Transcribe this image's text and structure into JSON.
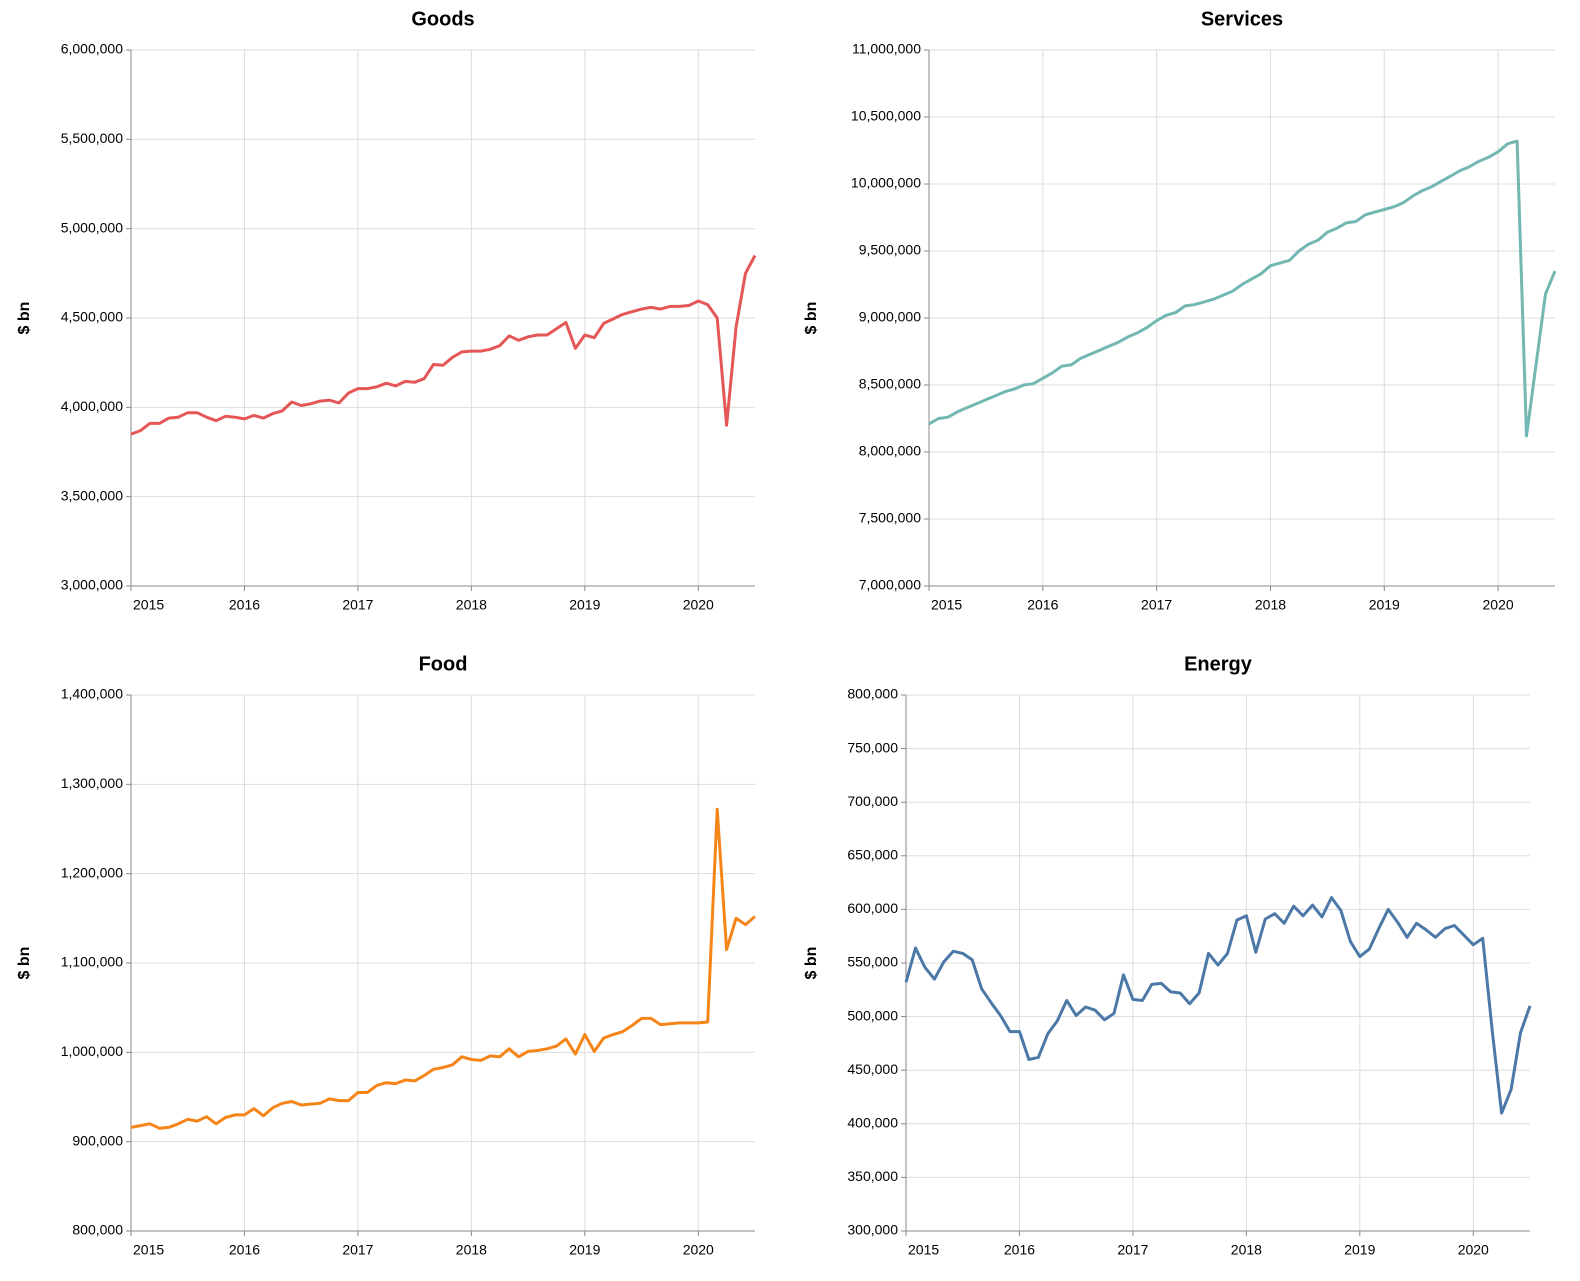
{
  "chart_data": [
    {
      "type": "line",
      "title": "Goods",
      "y_label": "$ bn",
      "color": "#e45756",
      "x": [
        "2015-01",
        "2015-02",
        "2015-03",
        "2015-04",
        "2015-05",
        "2015-06",
        "2015-07",
        "2015-08",
        "2015-09",
        "2015-10",
        "2015-11",
        "2015-12",
        "2016-01",
        "2016-02",
        "2016-03",
        "2016-04",
        "2016-05",
        "2016-06",
        "2016-07",
        "2016-08",
        "2016-09",
        "2016-10",
        "2016-11",
        "2016-12",
        "2017-01",
        "2017-02",
        "2017-03",
        "2017-04",
        "2017-05",
        "2017-06",
        "2017-07",
        "2017-08",
        "2017-09",
        "2017-10",
        "2017-11",
        "2017-12",
        "2018-01",
        "2018-02",
        "2018-03",
        "2018-04",
        "2018-05",
        "2018-06",
        "2018-07",
        "2018-08",
        "2018-09",
        "2018-10",
        "2018-11",
        "2018-12",
        "2019-01",
        "2019-02",
        "2019-03",
        "2019-04",
        "2019-05",
        "2019-06",
        "2019-07",
        "2019-08",
        "2019-09",
        "2019-10",
        "2019-11",
        "2019-12",
        "2020-01",
        "2020-02",
        "2020-03",
        "2020-04",
        "2020-05",
        "2020-06",
        "2020-07"
      ],
      "values": [
        3850000,
        3870000,
        3910000,
        3910000,
        3940000,
        3945000,
        3970000,
        3970000,
        3945000,
        3925000,
        3950000,
        3945000,
        3935000,
        3955000,
        3940000,
        3965000,
        3980000,
        4030000,
        4010000,
        4020000,
        4035000,
        4040000,
        4025000,
        4080000,
        4105000,
        4105000,
        4115000,
        4135000,
        4120000,
        4145000,
        4140000,
        4160000,
        4240000,
        4235000,
        4280000,
        4310000,
        4315000,
        4315000,
        4325000,
        4345000,
        4400000,
        4375000,
        4395000,
        4405000,
        4405000,
        4440000,
        4475000,
        4330000,
        4405000,
        4390000,
        4470000,
        4495000,
        4520000,
        4535000,
        4550000,
        4560000,
        4550000,
        4565000,
        4565000,
        4570000,
        4595000,
        4575000,
        4500000,
        3900000,
        4450000,
        4750000,
        4850000
      ],
      "xlim": [
        "2015-01",
        "2020-07"
      ],
      "xticks": [
        {
          "value": "2015-01",
          "label": "2015"
        },
        {
          "value": "2016-01",
          "label": "2016"
        },
        {
          "value": "2017-01",
          "label": "2017"
        },
        {
          "value": "2018-01",
          "label": "2018"
        },
        {
          "value": "2019-01",
          "label": "2019"
        },
        {
          "value": "2020-01",
          "label": "2020"
        }
      ],
      "ylim": [
        3000000,
        6000000
      ],
      "yticks": [
        {
          "value": 3000000,
          "label": "3,000,000"
        },
        {
          "value": 3500000,
          "label": "3,500,000"
        },
        {
          "value": 4000000,
          "label": "4,000,000"
        },
        {
          "value": 4500000,
          "label": "4,500,000"
        },
        {
          "value": 5000000,
          "label": "5,000,000"
        },
        {
          "value": 5500000,
          "label": "5,500,000"
        },
        {
          "value": 6000000,
          "label": "6,000,000"
        }
      ],
      "grid": true
    },
    {
      "type": "line",
      "title": "Services",
      "y_label": "$ bn",
      "color": "#72b7b2",
      "x": [
        "2015-01",
        "2015-02",
        "2015-03",
        "2015-04",
        "2015-05",
        "2015-06",
        "2015-07",
        "2015-08",
        "2015-09",
        "2015-10",
        "2015-11",
        "2015-12",
        "2016-01",
        "2016-02",
        "2016-03",
        "2016-04",
        "2016-05",
        "2016-06",
        "2016-07",
        "2016-08",
        "2016-09",
        "2016-10",
        "2016-11",
        "2016-12",
        "2017-01",
        "2017-02",
        "2017-03",
        "2017-04",
        "2017-05",
        "2017-06",
        "2017-07",
        "2017-08",
        "2017-09",
        "2017-10",
        "2017-11",
        "2017-12",
        "2018-01",
        "2018-02",
        "2018-03",
        "2018-04",
        "2018-05",
        "2018-06",
        "2018-07",
        "2018-08",
        "2018-09",
        "2018-10",
        "2018-11",
        "2018-12",
        "2019-01",
        "2019-02",
        "2019-03",
        "2019-04",
        "2019-05",
        "2019-06",
        "2019-07",
        "2019-08",
        "2019-09",
        "2019-10",
        "2019-11",
        "2019-12",
        "2020-01",
        "2020-02",
        "2020-03",
        "2020-04",
        "2020-05",
        "2020-06",
        "2020-07"
      ],
      "values": [
        8210000,
        8250000,
        8260000,
        8300000,
        8330000,
        8360000,
        8390000,
        8420000,
        8450000,
        8470000,
        8500000,
        8510000,
        8550000,
        8590000,
        8640000,
        8650000,
        8700000,
        8730000,
        8760000,
        8790000,
        8820000,
        8860000,
        8890000,
        8930000,
        8980000,
        9020000,
        9040000,
        9090000,
        9100000,
        9120000,
        9140000,
        9170000,
        9200000,
        9250000,
        9290000,
        9330000,
        9390000,
        9410000,
        9430000,
        9500000,
        9550000,
        9580000,
        9640000,
        9670000,
        9710000,
        9720000,
        9770000,
        9790000,
        9810000,
        9830000,
        9860000,
        9910000,
        9950000,
        9980000,
        10020000,
        10060000,
        10100000,
        10130000,
        10170000,
        10200000,
        10240000,
        10300000,
        10320000,
        8120000,
        8650000,
        9180000,
        9350000
      ],
      "xlim": [
        "2015-01",
        "2020-07"
      ],
      "xticks": [
        {
          "value": "2015-01",
          "label": "2015"
        },
        {
          "value": "2016-01",
          "label": "2016"
        },
        {
          "value": "2017-01",
          "label": "2017"
        },
        {
          "value": "2018-01",
          "label": "2018"
        },
        {
          "value": "2019-01",
          "label": "2019"
        },
        {
          "value": "2020-01",
          "label": "2020"
        }
      ],
      "ylim": [
        7000000,
        11000000
      ],
      "yticks": [
        {
          "value": 7000000,
          "label": "7,000,000"
        },
        {
          "value": 7500000,
          "label": "7,500,000"
        },
        {
          "value": 8000000,
          "label": "8,000,000"
        },
        {
          "value": 8500000,
          "label": "8,500,000"
        },
        {
          "value": 9000000,
          "label": "9,000,000"
        },
        {
          "value": 9500000,
          "label": "9,500,000"
        },
        {
          "value": 10000000,
          "label": "10,000,000"
        },
        {
          "value": 10500000,
          "label": "10,500,000"
        },
        {
          "value": 11000000,
          "label": "11,000,000"
        }
      ],
      "grid": true
    },
    {
      "type": "line",
      "title": "Food",
      "y_label": "$ bn",
      "color": "#f58518",
      "x": [
        "2015-01",
        "2015-02",
        "2015-03",
        "2015-04",
        "2015-05",
        "2015-06",
        "2015-07",
        "2015-08",
        "2015-09",
        "2015-10",
        "2015-11",
        "2015-12",
        "2016-01",
        "2016-02",
        "2016-03",
        "2016-04",
        "2016-05",
        "2016-06",
        "2016-07",
        "2016-08",
        "2016-09",
        "2016-10",
        "2016-11",
        "2016-12",
        "2017-01",
        "2017-02",
        "2017-03",
        "2017-04",
        "2017-05",
        "2017-06",
        "2017-07",
        "2017-08",
        "2017-09",
        "2017-10",
        "2017-11",
        "2017-12",
        "2018-01",
        "2018-02",
        "2018-03",
        "2018-04",
        "2018-05",
        "2018-06",
        "2018-07",
        "2018-08",
        "2018-09",
        "2018-10",
        "2018-11",
        "2018-12",
        "2019-01",
        "2019-02",
        "2019-03",
        "2019-04",
        "2019-05",
        "2019-06",
        "2019-07",
        "2019-08",
        "2019-09",
        "2019-10",
        "2019-11",
        "2019-12",
        "2020-01",
        "2020-02",
        "2020-03",
        "2020-04",
        "2020-05",
        "2020-06",
        "2020-07"
      ],
      "values": [
        916000,
        918000,
        920000,
        915000,
        916000,
        920000,
        925000,
        923000,
        928000,
        920000,
        927000,
        930000,
        930000,
        937000,
        929000,
        938000,
        943000,
        945000,
        941000,
        942000,
        943000,
        948000,
        946000,
        946000,
        955000,
        955000,
        963000,
        966000,
        965000,
        969000,
        968000,
        974000,
        981000,
        983000,
        986000,
        995000,
        992000,
        991000,
        996000,
        995000,
        1004000,
        995000,
        1001000,
        1002000,
        1004000,
        1007000,
        1015000,
        998000,
        1020000,
        1001000,
        1016000,
        1020000,
        1023000,
        1030000,
        1038000,
        1038000,
        1031000,
        1032000,
        1033000,
        1033000,
        1033000,
        1034000,
        1272000,
        1115000,
        1150000,
        1143000,
        1152000
      ],
      "xlim": [
        "2015-01",
        "2020-07"
      ],
      "xticks": [
        {
          "value": "2015-01",
          "label": "2015"
        },
        {
          "value": "2016-01",
          "label": "2016"
        },
        {
          "value": "2017-01",
          "label": "2017"
        },
        {
          "value": "2018-01",
          "label": "2018"
        },
        {
          "value": "2019-01",
          "label": "2019"
        },
        {
          "value": "2020-01",
          "label": "2020"
        }
      ],
      "ylim": [
        800000,
        1400000
      ],
      "yticks": [
        {
          "value": 800000,
          "label": "800,000"
        },
        {
          "value": 900000,
          "label": "900,000"
        },
        {
          "value": 1000000,
          "label": "1,000,000"
        },
        {
          "value": 1100000,
          "label": "1,100,000"
        },
        {
          "value": 1200000,
          "label": "1,200,000"
        },
        {
          "value": 1300000,
          "label": "1,300,000"
        },
        {
          "value": 1400000,
          "label": "1,400,000"
        }
      ],
      "grid": true
    },
    {
      "type": "line",
      "title": "Energy",
      "y_label": "$ bn",
      "color": "#4c78a8",
      "x": [
        "2015-01",
        "2015-02",
        "2015-03",
        "2015-04",
        "2015-05",
        "2015-06",
        "2015-07",
        "2015-08",
        "2015-09",
        "2015-10",
        "2015-11",
        "2015-12",
        "2016-01",
        "2016-02",
        "2016-03",
        "2016-04",
        "2016-05",
        "2016-06",
        "2016-07",
        "2016-08",
        "2016-09",
        "2016-10",
        "2016-11",
        "2016-12",
        "2017-01",
        "2017-02",
        "2017-03",
        "2017-04",
        "2017-05",
        "2017-06",
        "2017-07",
        "2017-08",
        "2017-09",
        "2017-10",
        "2017-11",
        "2017-12",
        "2018-01",
        "2018-02",
        "2018-03",
        "2018-04",
        "2018-05",
        "2018-06",
        "2018-07",
        "2018-08",
        "2018-09",
        "2018-10",
        "2018-11",
        "2018-12",
        "2019-01",
        "2019-02",
        "2019-03",
        "2019-04",
        "2019-05",
        "2019-06",
        "2019-07",
        "2019-08",
        "2019-09",
        "2019-10",
        "2019-11",
        "2019-12",
        "2020-01",
        "2020-02",
        "2020-03",
        "2020-04",
        "2020-05",
        "2020-06",
        "2020-07"
      ],
      "values": [
        532000,
        564000,
        546000,
        535000,
        551000,
        561000,
        559000,
        553000,
        526000,
        513000,
        501000,
        486000,
        486000,
        460000,
        462000,
        484000,
        496000,
        515000,
        501000,
        509000,
        506000,
        497000,
        503000,
        539000,
        516000,
        515000,
        530000,
        531000,
        523000,
        522000,
        512000,
        522000,
        559000,
        548000,
        559000,
        590000,
        594000,
        560000,
        591000,
        596000,
        587000,
        603000,
        594000,
        604000,
        593000,
        611000,
        599000,
        570000,
        556000,
        563000,
        582000,
        600000,
        588000,
        574000,
        587000,
        581000,
        574000,
        582000,
        585000,
        576000,
        567000,
        573000,
        487000,
        410000,
        432000,
        485000,
        510000
      ],
      "xlim": [
        "2015-01",
        "2020-07"
      ],
      "xticks": [
        {
          "value": "2015-01",
          "label": "2015"
        },
        {
          "value": "2016-01",
          "label": "2016"
        },
        {
          "value": "2017-01",
          "label": "2017"
        },
        {
          "value": "2018-01",
          "label": "2018"
        },
        {
          "value": "2019-01",
          "label": "2019"
        },
        {
          "value": "2020-01",
          "label": "2020"
        }
      ],
      "ylim": [
        300000,
        800000
      ],
      "yticks": [
        {
          "value": 300000,
          "label": "300,000"
        },
        {
          "value": 350000,
          "label": "350,000"
        },
        {
          "value": 400000,
          "label": "400,000"
        },
        {
          "value": 450000,
          "label": "450,000"
        },
        {
          "value": 500000,
          "label": "500,000"
        },
        {
          "value": 550000,
          "label": "550,000"
        },
        {
          "value": 600000,
          "label": "600,000"
        },
        {
          "value": 650000,
          "label": "650,000"
        },
        {
          "value": 700000,
          "label": "700,000"
        },
        {
          "value": 750000,
          "label": "750,000"
        },
        {
          "value": 800000,
          "label": "800,000"
        }
      ],
      "grid": true
    }
  ]
}
